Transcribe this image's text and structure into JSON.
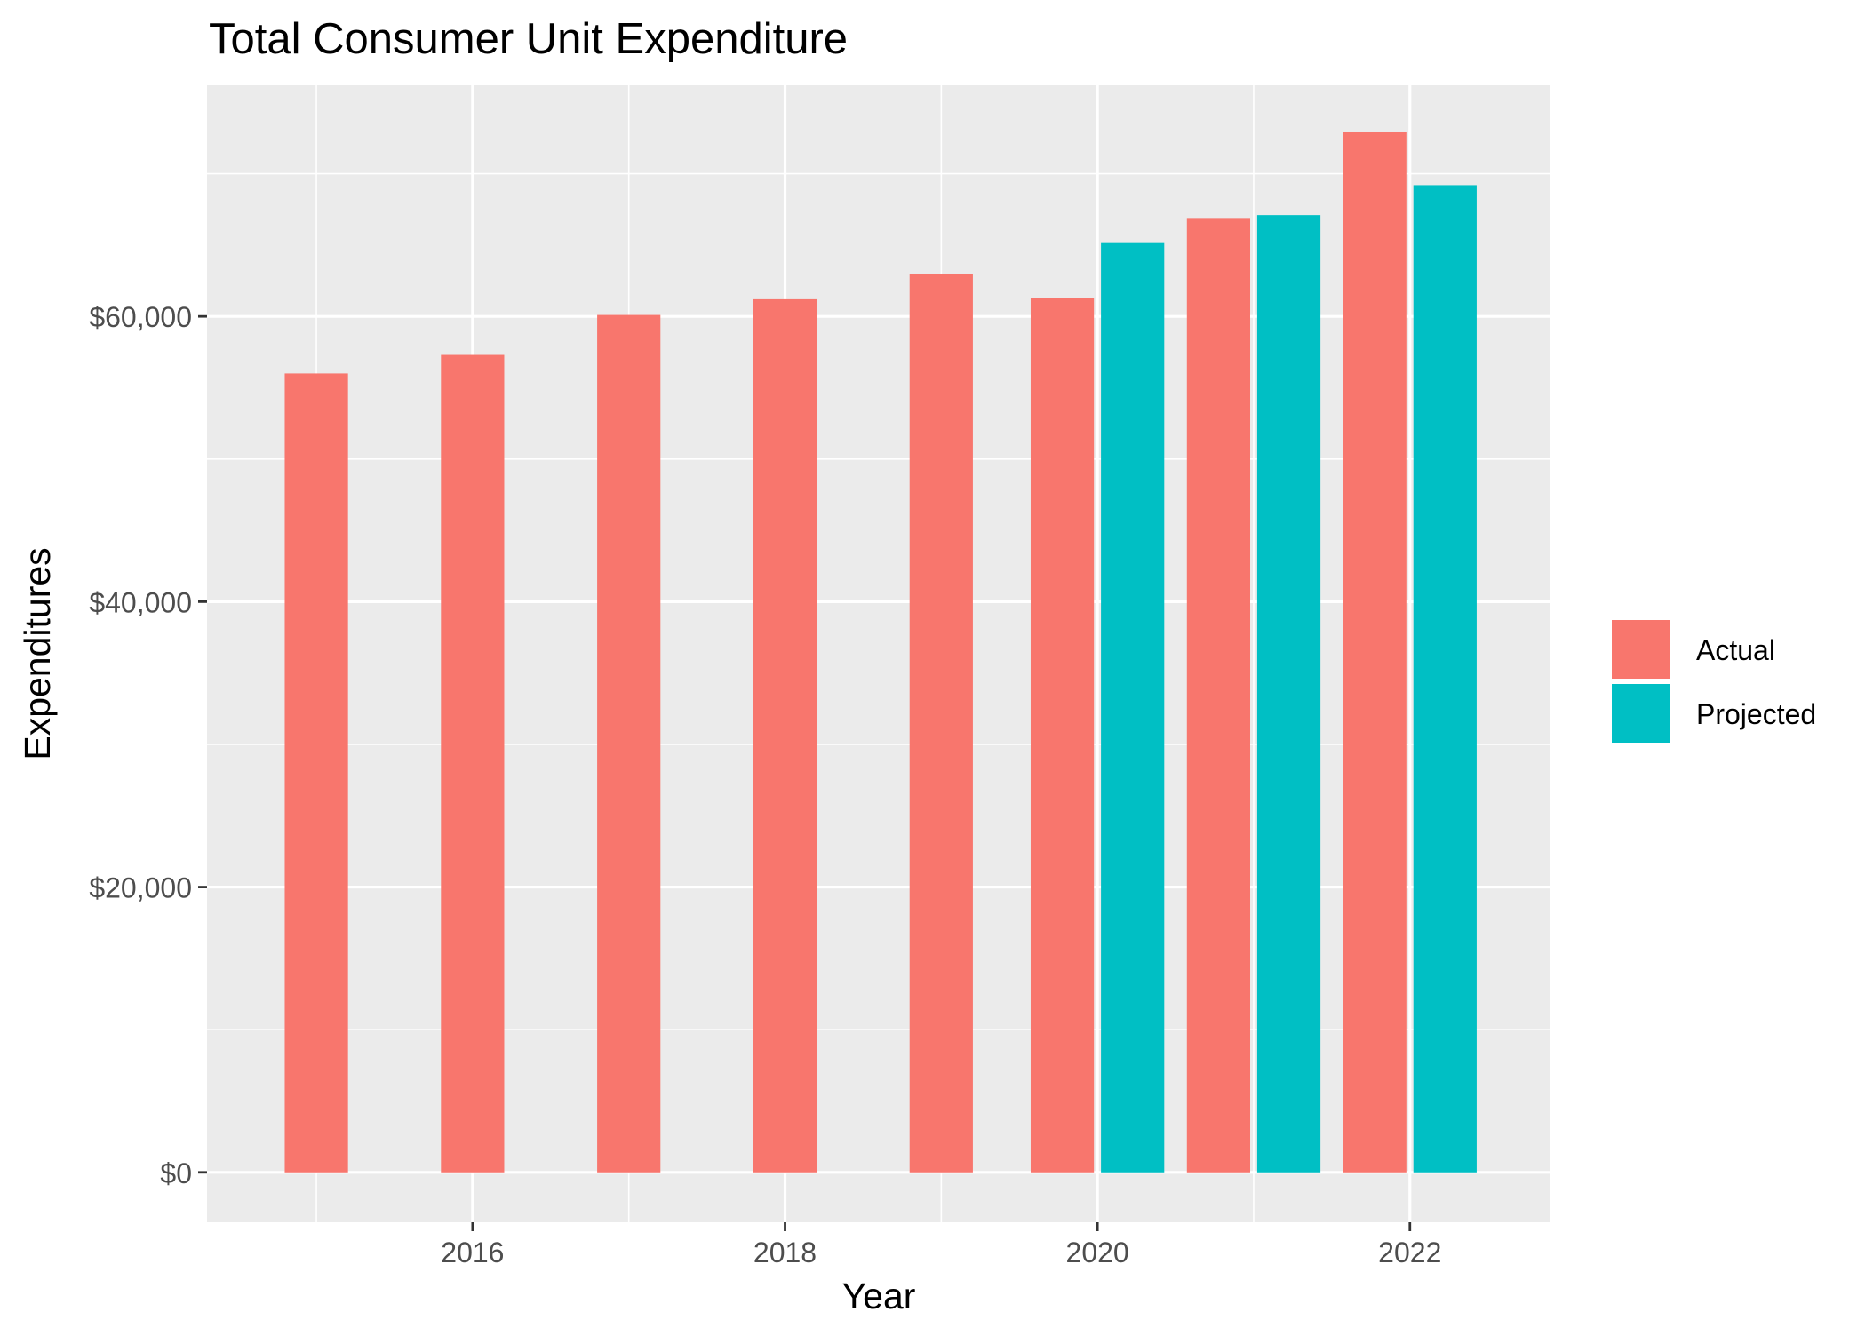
{
  "chart_data": {
    "type": "bar",
    "title": "Total Consumer Unit Expenditure",
    "xlabel": "Year",
    "ylabel": "Expenditures",
    "xlim": [
      2014.3,
      2022.9
    ],
    "ylim": [
      -3500,
      76200
    ],
    "x_ticks": [
      2016,
      2018,
      2020,
      2022
    ],
    "x_tick_labels": [
      "2016",
      "2018",
      "2020",
      "2022"
    ],
    "y_ticks": [
      0,
      20000,
      40000,
      60000
    ],
    "y_tick_labels": [
      "$0",
      "$20,000",
      "$40,000",
      "$60,000"
    ],
    "grid": true,
    "legend_position": "right",
    "series": [
      {
        "name": "Actual",
        "color": "#F8766D",
        "x": [
          2015,
          2016,
          2017,
          2018,
          2019,
          2020,
          2021,
          2022
        ],
        "values": [
          56000,
          57300,
          60100,
          61200,
          63000,
          61300,
          66900,
          72900
        ]
      },
      {
        "name": "Projected",
        "color": "#00BFC4",
        "x": [
          2020,
          2021,
          2022
        ],
        "values": [
          65200,
          67100,
          69200
        ]
      }
    ]
  }
}
